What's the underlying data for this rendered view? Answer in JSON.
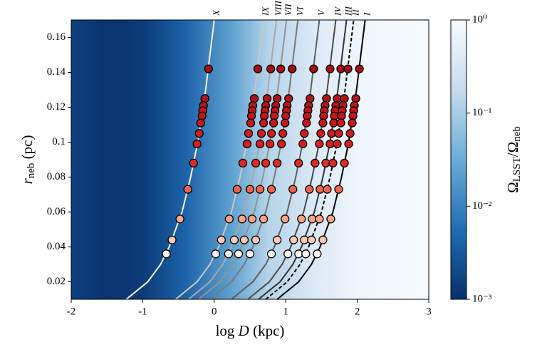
{
  "chart_data": [
    {
      "type": "line",
      "xlabel": [
        "log ",
        "D",
        " (kpc)"
      ],
      "ylabel": [
        "r",
        "neb",
        " (pc)"
      ],
      "xlim": [
        -2,
        3
      ],
      "xticks": [
        -2,
        -1,
        0,
        1,
        2,
        3
      ],
      "ylim": [
        0.01,
        0.17
      ],
      "yticks": [
        0.02,
        0.04,
        0.06,
        0.08,
        0.1,
        0.12,
        0.14,
        0.16
      ],
      "series": [
        {
          "name": "X",
          "color": "#f2f2f2",
          "x": [
            -1.23,
            -0.93,
            -0.75,
            -0.63,
            -0.45,
            -0.33,
            -0.23,
            -0.12,
            0
          ],
          "values": [
            0.01,
            0.02,
            0.03,
            0.04,
            0.06,
            0.08,
            0.1,
            0.13,
            0.17
          ]
        },
        {
          "name": "IX",
          "color": "#c8c8c8",
          "x": [
            -0.54,
            -0.24,
            -0.06,
            0.06,
            0.24,
            0.36,
            0.46,
            0.57,
            0.69
          ],
          "values": [
            0.01,
            0.02,
            0.03,
            0.04,
            0.06,
            0.08,
            0.1,
            0.13,
            0.17
          ]
        },
        {
          "name": "VIII",
          "color": "#a8a8a8",
          "x": [
            -0.36,
            -0.06,
            0.12,
            0.24,
            0.42,
            0.54,
            0.64,
            0.75,
            0.87
          ],
          "values": [
            0.01,
            0.02,
            0.03,
            0.04,
            0.06,
            0.08,
            0.1,
            0.13,
            0.17
          ]
        },
        {
          "name": "VII",
          "color": "#929292",
          "x": [
            -0.22,
            0.08,
            0.26,
            0.38,
            0.56,
            0.68,
            0.78,
            0.89,
            1.01
          ],
          "values": [
            0.01,
            0.02,
            0.03,
            0.04,
            0.06,
            0.08,
            0.1,
            0.13,
            0.17
          ]
        },
        {
          "name": "VI",
          "color": "#787878",
          "x": [
            -0.06,
            0.24,
            0.42,
            0.54,
            0.72,
            0.84,
            0.94,
            1.05,
            1.17
          ],
          "values": [
            0.01,
            0.02,
            0.03,
            0.04,
            0.06,
            0.08,
            0.1,
            0.13,
            0.17
          ]
        },
        {
          "name": "V",
          "color": "#5f5f5f",
          "x": [
            0.24,
            0.54,
            0.72,
            0.84,
            1.02,
            1.14,
            1.24,
            1.35,
            1.47
          ],
          "values": [
            0.01,
            0.02,
            0.03,
            0.04,
            0.06,
            0.08,
            0.1,
            0.13,
            0.17
          ]
        },
        {
          "name": "IV",
          "color": "#4a4a4a",
          "x": [
            0.47,
            0.77,
            0.95,
            1.07,
            1.25,
            1.37,
            1.47,
            1.58,
            1.7
          ],
          "values": [
            0.01,
            0.02,
            0.03,
            0.04,
            0.06,
            0.08,
            0.1,
            0.13,
            0.17
          ]
        },
        {
          "name": "III",
          "color": "#333333",
          "x": [
            0.62,
            0.92,
            1.1,
            1.22,
            1.4,
            1.52,
            1.62,
            1.73,
            1.85
          ],
          "values": [
            0.01,
            0.02,
            0.03,
            0.04,
            0.06,
            0.08,
            0.1,
            0.13,
            0.17
          ]
        },
        {
          "name": "II",
          "color": "#000000",
          "linestyle": "dashed",
          "x": [
            0.72,
            1.02,
            1.2,
            1.32,
            1.5,
            1.62,
            1.72,
            1.83,
            1.95
          ],
          "values": [
            0.01,
            0.02,
            0.03,
            0.04,
            0.06,
            0.08,
            0.1,
            0.13,
            0.17
          ]
        },
        {
          "name": "I",
          "color": "#000000",
          "x": [
            0.88,
            1.18,
            1.36,
            1.48,
            1.66,
            1.78,
            1.88,
            1.99,
            2.11
          ],
          "values": [
            0.01,
            0.02,
            0.03,
            0.04,
            0.06,
            0.08,
            0.1,
            0.13,
            0.17
          ]
        }
      ],
      "colorbar": {
        "label": [
          "Ω",
          "LSST",
          "/Ω",
          "neb"
        ],
        "lim": [
          0.001,
          1
        ],
        "log": true,
        "ticks": [
          {
            "value": 1,
            "label": "10⁰"
          },
          {
            "value": 0.1,
            "label": "10⁻¹"
          },
          {
            "value": 0.01,
            "label": "10⁻²"
          },
          {
            "value": 0.001,
            "label": "10⁻³"
          }
        ]
      }
    },
    {
      "type": "scatter",
      "edgecolor": "#000000",
      "series": [
        {
          "color": "#a50f15",
          "x": [
            -0.08,
            0.61,
            0.79,
            0.93,
            1.09,
            1.39,
            1.62,
            1.77,
            1.87,
            2.03
          ],
          "values": [
            0.142,
            0.142,
            0.142,
            0.142,
            0.142,
            0.142,
            0.142,
            0.142,
            0.142,
            0.142
          ]
        },
        {
          "color": "#b11218",
          "x": [
            -0.13,
            0.56,
            0.74,
            0.88,
            1.04,
            1.34,
            1.57,
            1.72,
            1.82,
            1.98
          ],
          "values": [
            0.125,
            0.125,
            0.125,
            0.125,
            0.125,
            0.125,
            0.125,
            0.125,
            0.125,
            0.125
          ]
        },
        {
          "color": "#b91419",
          "x": [
            -0.15,
            0.54,
            0.72,
            0.86,
            1.02,
            1.32,
            1.55,
            1.7,
            1.8,
            1.96
          ],
          "values": [
            0.121,
            0.121,
            0.121,
            0.121,
            0.121,
            0.121,
            0.121,
            0.121,
            0.121,
            0.121
          ]
        },
        {
          "color": "#bf161b",
          "x": [
            -0.16,
            0.53,
            0.71,
            0.85,
            1.01,
            1.31,
            1.54,
            1.69,
            1.79,
            1.95
          ],
          "values": [
            0.118,
            0.118,
            0.118,
            0.118,
            0.118,
            0.118,
            0.118,
            0.118,
            0.118,
            0.118
          ]
        },
        {
          "color": "#c4161c",
          "x": [
            -0.17,
            0.52,
            0.7,
            0.84,
            1.0,
            1.3,
            1.53,
            1.68,
            1.78,
            1.94
          ],
          "values": [
            0.115,
            0.115,
            0.115,
            0.115,
            0.115,
            0.115,
            0.115,
            0.115,
            0.115,
            0.115
          ]
        },
        {
          "color": "#c9181d",
          "x": [
            -0.19,
            0.51,
            0.69,
            0.83,
            0.99,
            1.29,
            1.52,
            1.67,
            1.77,
            1.93
          ],
          "values": [
            0.111,
            0.111,
            0.111,
            0.111,
            0.111,
            0.111,
            0.111,
            0.111,
            0.111,
            0.111
          ]
        },
        {
          "color": "#d01d1f",
          "x": [
            -0.21,
            0.48,
            0.66,
            0.8,
            0.96,
            1.26,
            1.49,
            1.64,
            1.74,
            1.9
          ],
          "values": [
            0.105,
            0.105,
            0.105,
            0.105,
            0.105,
            0.105,
            0.105,
            0.105,
            0.105,
            0.105
          ]
        },
        {
          "color": "#d42020",
          "x": [
            -0.24,
            0.46,
            0.64,
            0.78,
            0.94,
            1.24,
            1.47,
            1.62,
            1.72,
            1.88
          ],
          "values": [
            0.099,
            0.099,
            0.099,
            0.099,
            0.099,
            0.099,
            0.099,
            0.099,
            0.099,
            0.099
          ]
        },
        {
          "color": "#de2b25",
          "x": [
            -0.29,
            0.4,
            0.58,
            0.72,
            0.88,
            1.18,
            1.41,
            1.56,
            1.66,
            1.82
          ],
          "values": [
            0.088,
            0.088,
            0.088,
            0.088,
            0.088,
            0.088,
            0.088,
            0.088,
            0.088,
            0.088
          ]
        },
        {
          "color": "#f0654a",
          "x": [
            -0.37,
            0.32,
            0.5,
            0.64,
            0.8,
            1.1,
            1.33,
            1.48,
            1.58,
            1.74
          ],
          "values": [
            0.073,
            0.073,
            0.073,
            0.073,
            0.073,
            0.073,
            0.073,
            0.073,
            0.073,
            0.073
          ]
        },
        {
          "color": "#fca486",
          "x": [
            -0.48,
            0.21,
            0.39,
            0.53,
            0.69,
            0.99,
            1.22,
            1.37,
            1.47,
            1.63
          ],
          "values": [
            0.056,
            0.056,
            0.056,
            0.056,
            0.056,
            0.056,
            0.056,
            0.056,
            0.056,
            0.056
          ]
        },
        {
          "color": "#fdcab5",
          "x": [
            -0.59,
            0.1,
            0.28,
            0.42,
            0.58,
            0.88,
            1.11,
            1.26,
            1.36,
            1.52
          ],
          "values": [
            0.044,
            0.044,
            0.044,
            0.044,
            0.044,
            0.044,
            0.044,
            0.044,
            0.044,
            0.044
          ]
        },
        {
          "color": "#fff5f0",
          "x": [
            -0.67,
            0.02,
            0.2,
            0.34,
            0.5,
            0.8,
            1.03,
            1.18,
            1.28,
            1.44
          ],
          "values": [
            0.036,
            0.036,
            0.036,
            0.036,
            0.036,
            0.036,
            0.036,
            0.036,
            0.036,
            0.036
          ]
        }
      ]
    }
  ]
}
